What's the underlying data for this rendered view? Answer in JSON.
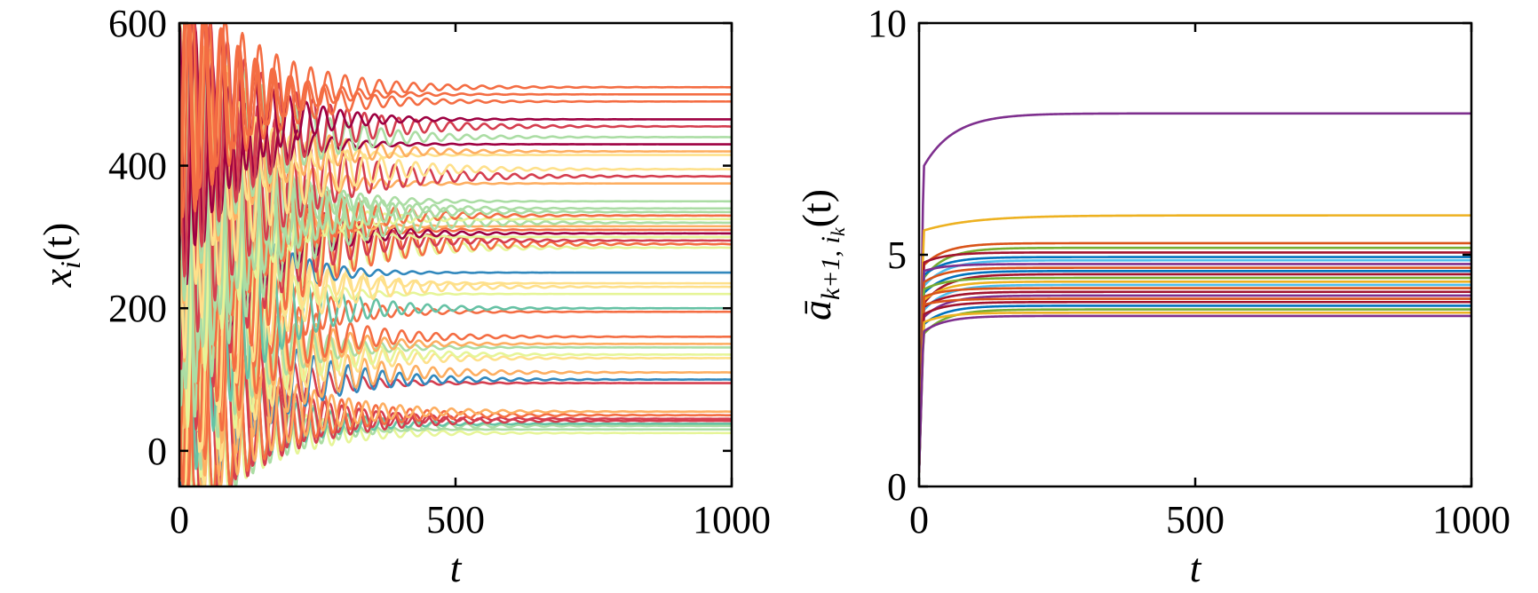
{
  "chart_data": [
    {
      "type": "line",
      "title": "",
      "xlabel": "t",
      "ylabel": {
        "base": "x",
        "sub": "i",
        "arg": "(t)"
      },
      "xlim": [
        0,
        1000
      ],
      "ylim": [
        -50,
        600
      ],
      "xticks": [
        0,
        500,
        1000
      ],
      "yticks": [
        0,
        200,
        400,
        600
      ],
      "grid": false,
      "legend": "none",
      "colormap": [
        "#9e0142",
        "#d53e4f",
        "#f46d43",
        "#fdae61",
        "#fee08b",
        "#e6f598",
        "#abdda4",
        "#66c2a5",
        "#3288bd"
      ],
      "series_summary": "many damped oscillating trajectories converging to constant levels",
      "initial_amplitude_range": [
        -50,
        600
      ],
      "settling_time": 400,
      "final_values": [
        25,
        30,
        35,
        38,
        42,
        45,
        50,
        55,
        95,
        100,
        110,
        130,
        135,
        145,
        150,
        160,
        195,
        200,
        220,
        230,
        235,
        250,
        285,
        290,
        295,
        300,
        305,
        310,
        315,
        320,
        325,
        330,
        335,
        340,
        350,
        375,
        385,
        395,
        415,
        420,
        430,
        440,
        455,
        465,
        490,
        500,
        510
      ]
    },
    {
      "type": "line",
      "title": "",
      "xlabel": "t",
      "ylabel": {
        "base": "ā",
        "sub": "k+1, i",
        "subsub": "k",
        "arg": "(t)"
      },
      "xlim": [
        0,
        1000
      ],
      "ylim": [
        0,
        10
      ],
      "xticks": [
        0,
        500,
        1000
      ],
      "yticks": [
        0,
        5,
        10
      ],
      "grid": false,
      "legend": "none",
      "series_summary": "adaptive gains rising quickly from 0 and saturating",
      "series": [
        {
          "final": 8.05,
          "color": "#7e2f8e"
        },
        {
          "final": 5.85,
          "color": "#edb120"
        },
        {
          "final": 5.25,
          "color": "#d95319"
        },
        {
          "final": 5.15,
          "color": "#77ac30"
        },
        {
          "final": 5.05,
          "color": "#a2142f"
        },
        {
          "final": 4.95,
          "color": "#0072bd"
        },
        {
          "final": 4.88,
          "color": "#4dbeee"
        },
        {
          "final": 4.8,
          "color": "#7e2f8e"
        },
        {
          "final": 4.72,
          "color": "#d95319"
        },
        {
          "final": 4.65,
          "color": "#0072bd"
        },
        {
          "final": 4.58,
          "color": "#a2142f"
        },
        {
          "final": 4.5,
          "color": "#77ac30"
        },
        {
          "final": 4.42,
          "color": "#edb120"
        },
        {
          "final": 4.35,
          "color": "#4dbeee"
        },
        {
          "final": 4.28,
          "color": "#d95319"
        },
        {
          "final": 4.2,
          "color": "#a2142f"
        },
        {
          "final": 4.12,
          "color": "#7e2f8e"
        },
        {
          "final": 4.05,
          "color": "#d95319"
        },
        {
          "final": 3.98,
          "color": "#a2142f"
        },
        {
          "final": 3.9,
          "color": "#0072bd"
        },
        {
          "final": 3.82,
          "color": "#77ac30"
        },
        {
          "final": 3.75,
          "color": "#edb120"
        },
        {
          "final": 3.68,
          "color": "#7e2f8e"
        }
      ]
    }
  ]
}
